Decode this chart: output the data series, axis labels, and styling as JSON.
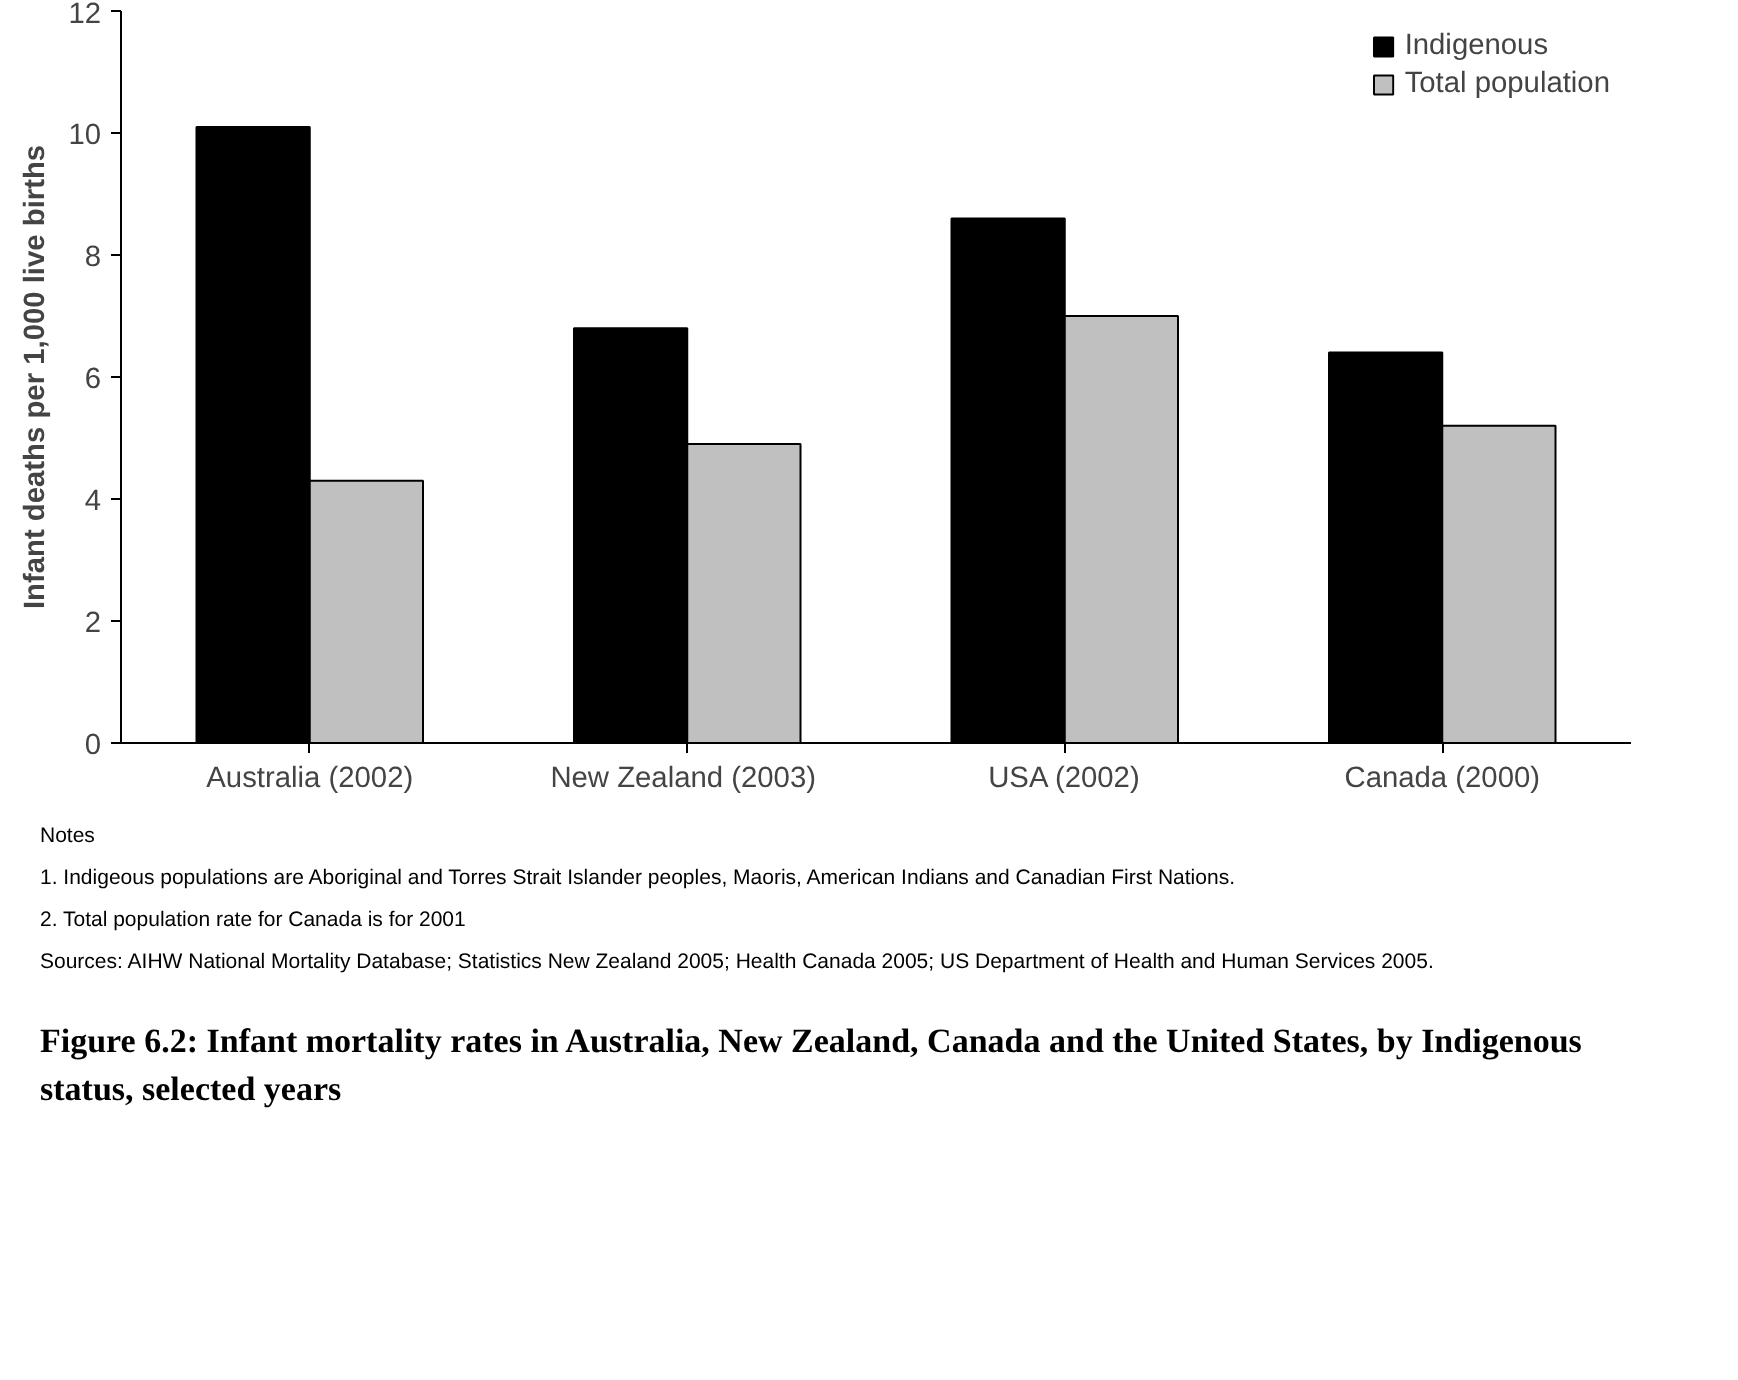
{
  "chart_data": {
    "type": "bar",
    "title": "Figure 6.2: Infant mortality rates in Australia, New Zealand, Canada and the United States, by Indigenous status, selected years",
    "ylabel": "Infant deaths per 1,000 live births",
    "categories": [
      "Australia (2002)",
      "New  Zealand (2003)",
      "USA (2002)",
      "Canada (2000)"
    ],
    "series": [
      {
        "name": "Indigenous",
        "color": "#000000",
        "values": [
          10.1,
          6.8,
          8.6,
          6.4
        ]
      },
      {
        "name": "Total population",
        "color": "#c0c0c0",
        "values": [
          4.3,
          4.9,
          7.0,
          5.2
        ]
      }
    ],
    "ylim": [
      0,
      12
    ],
    "yticks": [
      0,
      2,
      4,
      6,
      8,
      10,
      12
    ],
    "grid": false,
    "legend": "top right",
    "annotations": [
      "Notes",
      "1. Indigeous populations are Aboriginal and Torres Strait Islander peoples, Maoris, American Indians and Canadian First Nations.",
      "2. Total population rate for Canada is for 2001",
      "Sources: AIHW National Mortality Database; Statistics New Zealand 2005; Health Canada 2005; US Department of Health and Human Services 2005."
    ]
  }
}
